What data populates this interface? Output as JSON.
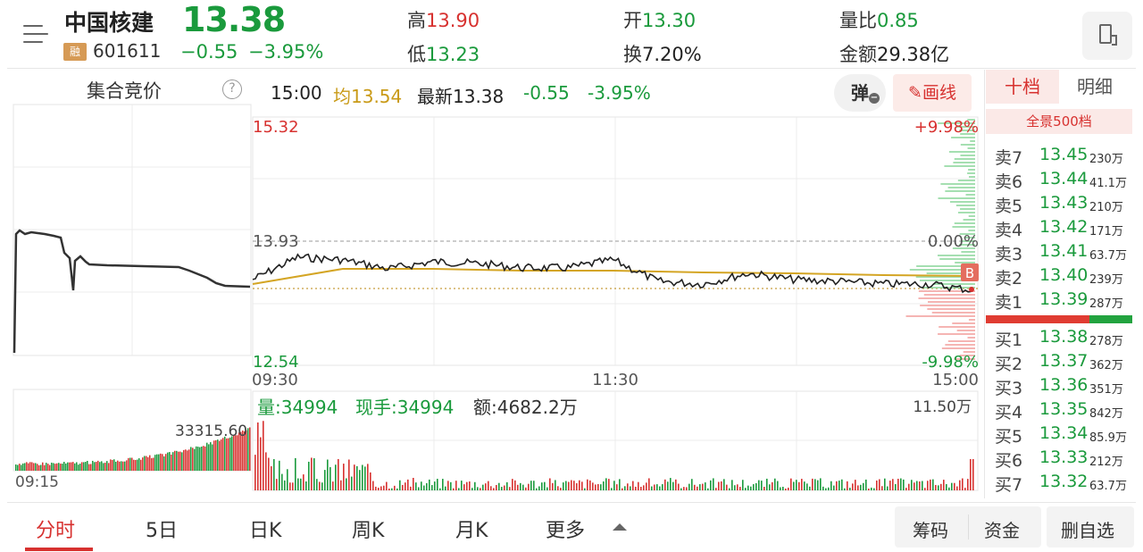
{
  "header": {
    "stock_name": "中国核建",
    "badge": "融",
    "code": "601611",
    "price": "13.38",
    "change": "−0.55",
    "change_pct": "−3.95%",
    "high_label": "高",
    "high": "13.90",
    "low_label": "低",
    "low": "13.23",
    "open_label": "开",
    "open": "13.30",
    "turnover_label": "换",
    "turnover": "7.20%",
    "volume_ratio_label": "量比",
    "volume_ratio": "0.85",
    "amount_label": "金额",
    "amount": "29.38亿"
  },
  "auction": {
    "title": "集合竞价",
    "help_icon": "?",
    "volume_label": "33315.60",
    "time_label": "09:15"
  },
  "info_bar": {
    "time": "15:00",
    "avg": "均13.54",
    "latest": "最新13.38",
    "change": "-0.55",
    "change_pct": "-3.95%",
    "tan_label": "弹",
    "draw_label": "画线"
  },
  "chart": {
    "y_top": "15.32",
    "y_mid": "13.93",
    "y_bottom": "12.54",
    "pct_top": "+9.98%",
    "pct_mid": "0.00%",
    "pct_bottom": "-9.98%",
    "x_start": "09:30",
    "x_mid": "11:30",
    "x_end": "15:00",
    "b_marker": "B",
    "vol_info": "量:34994",
    "now_hand": "现手:34994",
    "amount_info": "额:4682.2万",
    "vol_max": "11.50万"
  },
  "chart_data": {
    "type": "line",
    "title": "",
    "ylim": [
      12.54,
      15.32
    ],
    "prev_close": 13.93,
    "x_ticks": [
      "09:30",
      "11:30",
      "15:00"
    ],
    "series": [
      {
        "name": "",
        "x": [
          "09:30",
          "09:45",
          "10:00",
          "10:15",
          "10:30",
          "10:45",
          "11:00",
          "11:15",
          "11:30",
          "13:15",
          "13:30",
          "13:45",
          "14:00",
          "14:15",
          "14:30",
          "14:45",
          "15:00"
        ],
        "values": [
          13.5,
          13.75,
          13.72,
          13.62,
          13.7,
          13.68,
          13.63,
          13.63,
          13.72,
          13.48,
          13.45,
          13.57,
          13.5,
          13.48,
          13.45,
          13.45,
          13.38
        ]
      },
      {
        "name": "均",
        "x": [
          "09:30",
          "10:00",
          "10:30",
          "11:00",
          "11:30",
          "13:30",
          "14:00",
          "14:30",
          "15:00"
        ],
        "values": [
          13.45,
          13.62,
          13.62,
          13.6,
          13.6,
          13.58,
          13.57,
          13.55,
          13.54
        ]
      }
    ]
  },
  "order_book": {
    "tab_ten": "十档",
    "tab_detail": "明细",
    "panorama": "全景500档",
    "asks": [
      {
        "label": "卖7",
        "price": "13.45",
        "vol": "230万"
      },
      {
        "label": "卖6",
        "price": "13.44",
        "vol": "41.1万"
      },
      {
        "label": "卖5",
        "price": "13.43",
        "vol": "210万"
      },
      {
        "label": "卖4",
        "price": "13.42",
        "vol": "171万"
      },
      {
        "label": "卖3",
        "price": "13.41",
        "vol": "63.7万"
      },
      {
        "label": "卖2",
        "price": "13.40",
        "vol": "239万"
      },
      {
        "label": "卖1",
        "price": "13.39",
        "vol": "287万"
      }
    ],
    "bids": [
      {
        "label": "买1",
        "price": "13.38",
        "vol": "278万"
      },
      {
        "label": "买2",
        "price": "13.37",
        "vol": "362万"
      },
      {
        "label": "买3",
        "price": "13.36",
        "vol": "351万"
      },
      {
        "label": "买4",
        "price": "13.35",
        "vol": "842万"
      },
      {
        "label": "买5",
        "price": "13.34",
        "vol": "85.9万"
      },
      {
        "label": "买6",
        "price": "13.33",
        "vol": "212万"
      },
      {
        "label": "买7",
        "price": "13.32",
        "vol": "63.7万"
      }
    ]
  },
  "tabs": {
    "intraday": "分时",
    "five_day": "5日",
    "day_k": "日K",
    "week_k": "周K",
    "month_k": "月K",
    "more": "更多"
  },
  "actions": {
    "chips": "筹码",
    "funds": "资金",
    "remove_watch": "删自选"
  },
  "colors": {
    "up": "#d7312f",
    "down": "#1a9a3c",
    "avg_line": "#c99a17"
  }
}
